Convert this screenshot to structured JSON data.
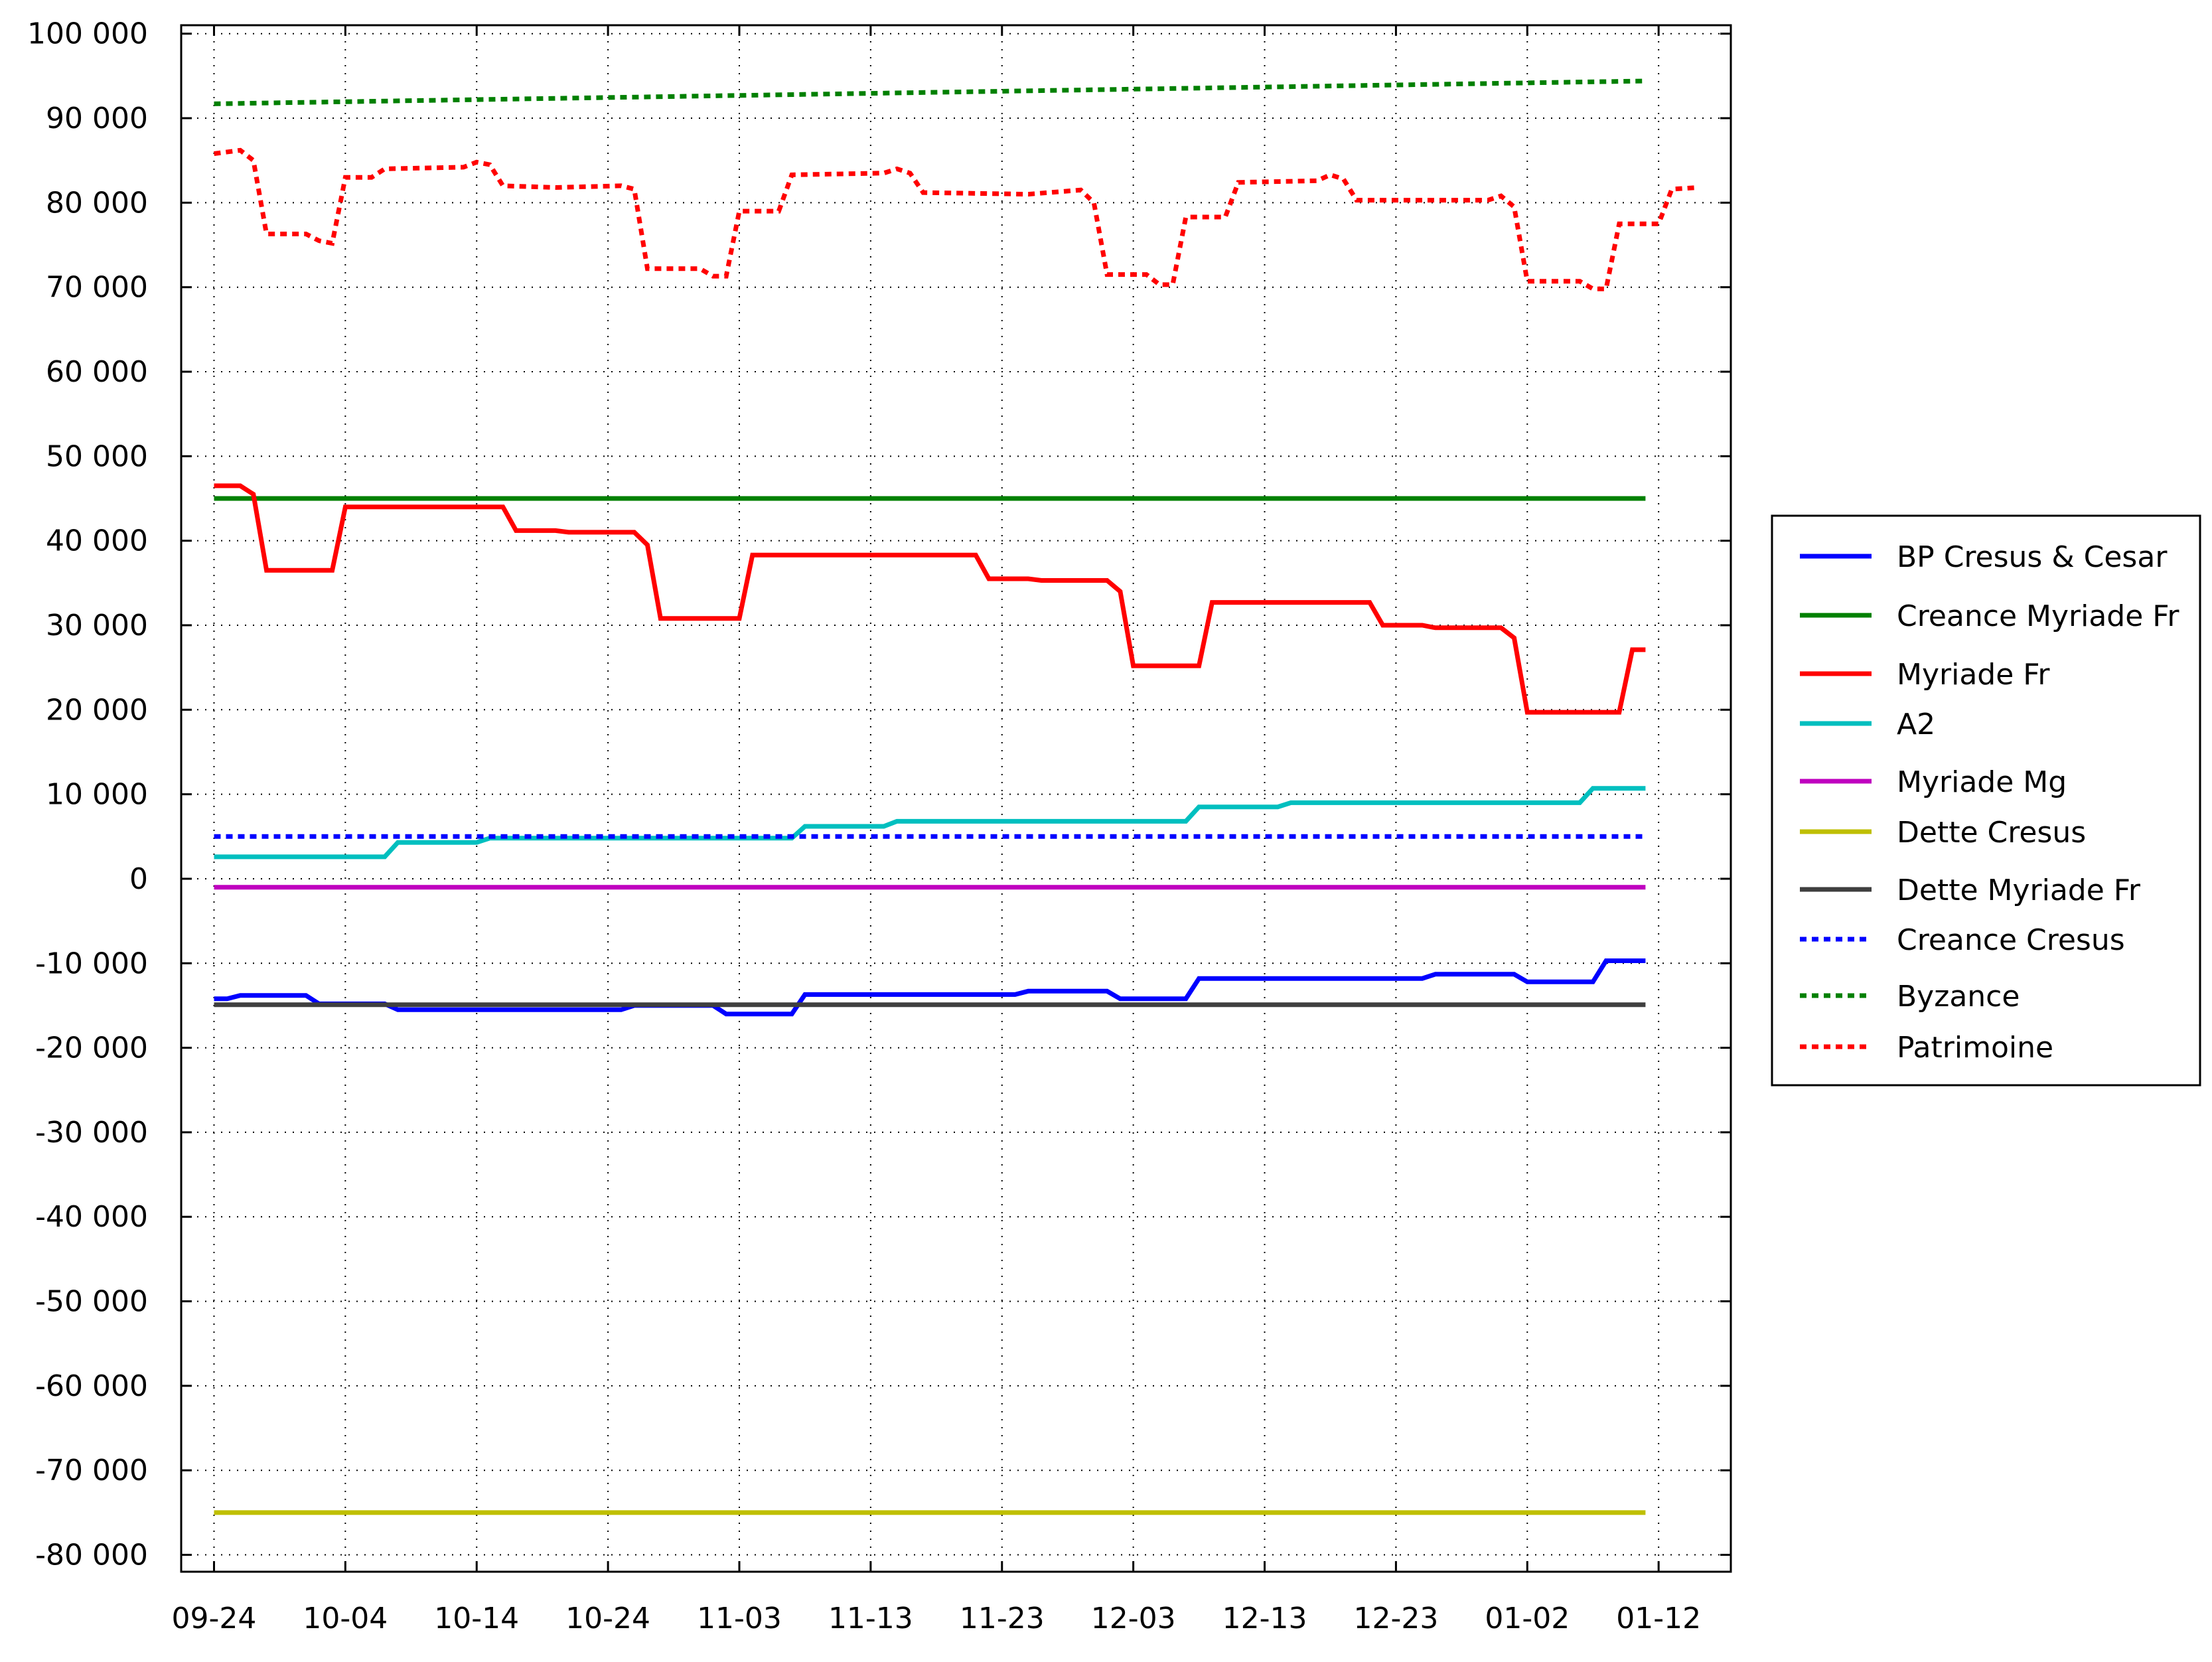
{
  "chart_data": {
    "type": "line",
    "x_ticks": [
      "09-24",
      "10-04",
      "10-14",
      "10-24",
      "11-03",
      "11-13",
      "11-23",
      "12-03",
      "12-13",
      "12-23",
      "01-02",
      "01-12"
    ],
    "y_ticks": [
      "100 000",
      "90 000",
      "80 000",
      "70 000",
      "60 000",
      "50 000",
      "40 000",
      "30 000",
      "20 000",
      "10 000",
      "0",
      "-10 000",
      "-20 000",
      "-30 000",
      "-40 000",
      "-50 000",
      "-60 000",
      "-70 000",
      "-80 000"
    ],
    "xlim": [
      -2.5,
      115.5
    ],
    "ylim": [
      -82000,
      101000
    ],
    "x_unit": "days after 09-24",
    "grid": true,
    "legend_position": "right",
    "series": [
      {
        "name": "BP Cresus & Cesar",
        "color": "#0000ff",
        "dash": "solid",
        "points": [
          [
            0,
            -14200
          ],
          [
            1,
            -14200
          ],
          [
            2,
            -13800
          ],
          [
            7,
            -13800
          ],
          [
            8,
            -14800
          ],
          [
            13,
            -14800
          ],
          [
            14,
            -15500
          ],
          [
            31,
            -15500
          ],
          [
            32,
            -15000
          ],
          [
            38,
            -15000
          ],
          [
            39,
            -16000
          ],
          [
            44,
            -16000
          ],
          [
            45,
            -13700
          ],
          [
            61,
            -13700
          ],
          [
            62,
            -13300
          ],
          [
            68,
            -13300
          ],
          [
            69,
            -14200
          ],
          [
            74,
            -14200
          ],
          [
            75,
            -11800
          ],
          [
            92,
            -11800
          ],
          [
            93,
            -11300
          ],
          [
            99,
            -11300
          ],
          [
            100,
            -12200
          ],
          [
            105,
            -12200
          ],
          [
            106,
            -9700
          ],
          [
            109,
            -9700
          ]
        ]
      },
      {
        "name": "Creance Myriade Fr",
        "color": "#008000",
        "dash": "solid",
        "points": [
          [
            0,
            45000
          ],
          [
            109,
            45000
          ]
        ]
      },
      {
        "name": "Myriade Fr",
        "color": "#ff0000",
        "dash": "solid",
        "points": [
          [
            0,
            46500
          ],
          [
            2,
            46500
          ],
          [
            3,
            45500
          ],
          [
            4,
            36500
          ],
          [
            9,
            36500
          ],
          [
            10,
            44000
          ],
          [
            22,
            44000
          ],
          [
            23,
            41200
          ],
          [
            26,
            41200
          ],
          [
            27,
            41000
          ],
          [
            32,
            41000
          ],
          [
            33,
            39500
          ],
          [
            34,
            30800
          ],
          [
            40,
            30800
          ],
          [
            41,
            38300
          ],
          [
            58,
            38300
          ],
          [
            59,
            35500
          ],
          [
            62,
            35500
          ],
          [
            63,
            35300
          ],
          [
            68,
            35300
          ],
          [
            69,
            34000
          ],
          [
            70,
            25200
          ],
          [
            75,
            25200
          ],
          [
            76,
            32700
          ],
          [
            88,
            32700
          ],
          [
            89,
            30000
          ],
          [
            92,
            30000
          ],
          [
            93,
            29700
          ],
          [
            98,
            29700
          ],
          [
            99,
            28500
          ],
          [
            100,
            19700
          ],
          [
            107,
            19700
          ],
          [
            108,
            27100
          ],
          [
            109,
            27100
          ]
        ]
      },
      {
        "name": "A2",
        "color": "#00bfbf",
        "dash": "solid",
        "points": [
          [
            0,
            2600
          ],
          [
            13,
            2600
          ],
          [
            14,
            4300
          ],
          [
            20,
            4300
          ],
          [
            21,
            4800
          ],
          [
            44,
            4800
          ],
          [
            45,
            6200
          ],
          [
            51,
            6200
          ],
          [
            52,
            6800
          ],
          [
            74,
            6800
          ],
          [
            75,
            8500
          ],
          [
            81,
            8500
          ],
          [
            82,
            9000
          ],
          [
            104,
            9000
          ],
          [
            105,
            10700
          ],
          [
            109,
            10700
          ]
        ]
      },
      {
        "name": "Myriade Mg",
        "color": "#bf00bf",
        "dash": "solid",
        "points": [
          [
            0,
            -1000
          ],
          [
            109,
            -1000
          ]
        ]
      },
      {
        "name": "Dette Cresus",
        "color": "#bfbf00",
        "dash": "solid",
        "points": [
          [
            0,
            -75000
          ],
          [
            109,
            -75000
          ]
        ]
      },
      {
        "name": "Dette Myriade Fr",
        "color": "#3f3f3f",
        "dash": "solid",
        "points": [
          [
            0,
            -14900
          ],
          [
            109,
            -14900
          ]
        ]
      },
      {
        "name": "Creance Cresus",
        "color": "#0000ff",
        "dash": "dashed",
        "points": [
          [
            0,
            5000
          ],
          [
            109,
            5000
          ]
        ]
      },
      {
        "name": "Byzance",
        "color": "#008000",
        "dash": "dashed",
        "points": [
          [
            0,
            91700
          ],
          [
            109,
            94400
          ]
        ]
      },
      {
        "name": "Patrimoine",
        "color": "#ff0000",
        "dash": "dashed",
        "points": [
          [
            0,
            85800
          ],
          [
            2,
            86200
          ],
          [
            3,
            85000
          ],
          [
            4,
            76300
          ],
          [
            7,
            76300
          ],
          [
            8,
            75500
          ],
          [
            9,
            75200
          ],
          [
            10,
            83000
          ],
          [
            12,
            83000
          ],
          [
            13,
            84000
          ],
          [
            19,
            84200
          ],
          [
            20,
            84800
          ],
          [
            21,
            84500
          ],
          [
            22,
            82000
          ],
          [
            26,
            81800
          ],
          [
            31,
            82000
          ],
          [
            32,
            81600
          ],
          [
            33,
            72200
          ],
          [
            37,
            72200
          ],
          [
            38,
            71300
          ],
          [
            39,
            71300
          ],
          [
            40,
            79000
          ],
          [
            43,
            79000
          ],
          [
            44,
            83300
          ],
          [
            51,
            83500
          ],
          [
            52,
            84000
          ],
          [
            53,
            83500
          ],
          [
            54,
            81200
          ],
          [
            62,
            81000
          ],
          [
            66,
            81500
          ],
          [
            67,
            80000
          ],
          [
            68,
            71500
          ],
          [
            71,
            71500
          ],
          [
            72,
            70300
          ],
          [
            73,
            70300
          ],
          [
            74,
            78300
          ],
          [
            77,
            78300
          ],
          [
            78,
            82400
          ],
          [
            84,
            82600
          ],
          [
            85,
            83300
          ],
          [
            86,
            82800
          ],
          [
            87,
            80300
          ],
          [
            97,
            80300
          ],
          [
            98,
            80800
          ],
          [
            99,
            79500
          ],
          [
            100,
            70700
          ],
          [
            104,
            70700
          ],
          [
            105,
            69800
          ],
          [
            106,
            69800
          ],
          [
            107,
            77500
          ],
          [
            110,
            77500
          ],
          [
            111,
            81600
          ],
          [
            113,
            81800
          ]
        ]
      }
    ]
  }
}
